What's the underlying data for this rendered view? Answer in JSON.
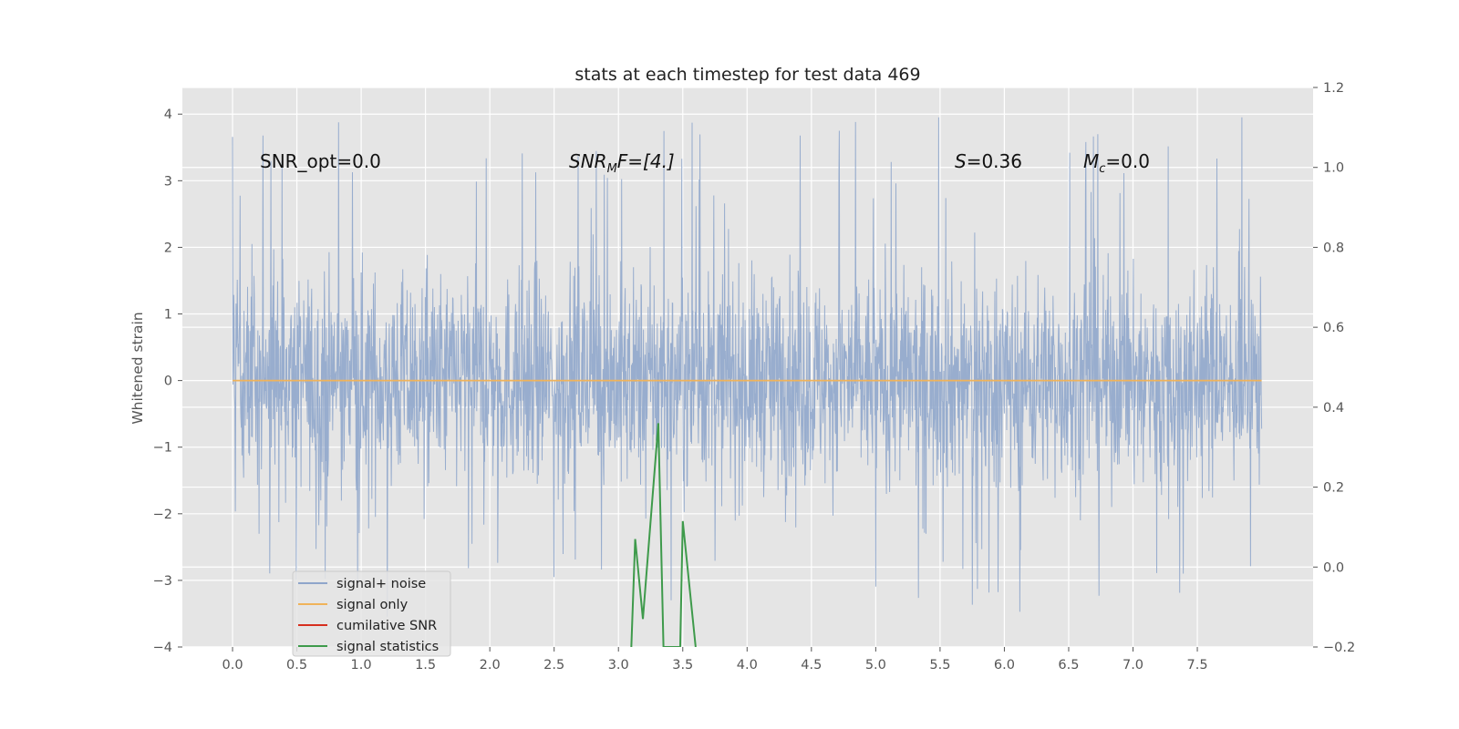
{
  "chart_data": {
    "type": "line",
    "title": "stats at each timestep for test data 469",
    "xlabel": "",
    "ylabel": "Whitened strain",
    "y2label": "",
    "xlim": [
      -0.39,
      8.4
    ],
    "ylim": [
      -4,
      4.4
    ],
    "y2lim": [
      -0.2,
      1.2
    ],
    "x_ticks": [
      "0.0",
      "0.5",
      "1.0",
      "1.5",
      "2.0",
      "2.5",
      "3.0",
      "3.5",
      "4.0",
      "4.5",
      "5.0",
      "5.5",
      "6.0",
      "6.5",
      "7.0",
      "7.5"
    ],
    "y_ticks": [
      "4",
      "3",
      "2",
      "1",
      "0",
      "−1",
      "−2",
      "−3",
      "−4"
    ],
    "y2_ticks": [
      "1.2",
      "1.0",
      "0.8",
      "0.6",
      "0.4",
      "0.2",
      "0.0",
      "−0.2"
    ],
    "grid": true,
    "legend_position": "lower-left",
    "annotations": {
      "snr_opt": "SNR_opt=0.0",
      "snr_mf_base": "SNR",
      "snr_mf_sub": "M",
      "snr_mf_rest": "F=[4.]",
      "s_var": "S",
      "s_val": "=0.36",
      "mc_base": "M",
      "mc_sub": "c",
      "mc_val": "=0.0"
    },
    "series": [
      {
        "name": "signal+ noise",
        "axis": "left",
        "color": "#8fa6cb",
        "noise_summary": {
          "x_start": 0.0,
          "x_end": 8.0,
          "typical_min": -2.0,
          "typical_max": 2.2,
          "peak_max": 4.0,
          "peak_min": -3.65
        }
      },
      {
        "name": "signal only",
        "axis": "left",
        "color": "#f0b35a",
        "x": [
          0.0,
          8.0
        ],
        "y": [
          0.0,
          0.0
        ]
      },
      {
        "name": "cumilative SNR",
        "axis": "right",
        "color": "#d62f1f",
        "x": [],
        "y": []
      },
      {
        "name": "signal statistics",
        "axis": "right",
        "color": "#3e9a4b",
        "x": [
          3.1,
          3.13,
          3.19,
          3.31,
          3.35,
          3.48,
          3.5,
          3.6
        ],
        "y": [
          -0.2,
          0.07,
          -0.13,
          0.36,
          -0.2,
          -0.2,
          0.115,
          -0.2
        ]
      }
    ]
  }
}
